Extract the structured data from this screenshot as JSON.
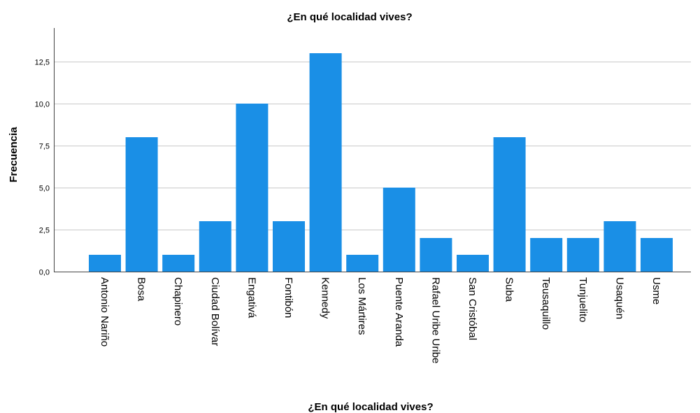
{
  "chart_data": {
    "type": "bar",
    "title": "¿En qué localidad vives?",
    "xlabel": "¿En qué localidad vives?",
    "ylabel": "Frecuencia",
    "categories": [
      "Antonio Nariño",
      "Bosa",
      "Chapinero",
      "Ciudad Bolívar",
      "Engativá",
      "Fontibón",
      "Kennedy",
      "Los Mártires",
      "Puente Aranda",
      "Rafael Uribe Uribe",
      "San Cristóbal",
      "Suba",
      "Teusaquillo",
      "Tunjuelito",
      "Usaquén",
      "Usme"
    ],
    "values": [
      1,
      8,
      1,
      3,
      10,
      3,
      13,
      1,
      5,
      2,
      1,
      8,
      2,
      2,
      3,
      2
    ],
    "ylim": [
      0,
      14.5
    ],
    "yticks": [
      0,
      2.5,
      5,
      7.5,
      10,
      12.5
    ],
    "ytick_labels": [
      "0,0",
      "2,5",
      "5,0",
      "7,5",
      "10,0",
      "12,5"
    ],
    "grid": true,
    "bar_color": "#1a8fe6"
  }
}
